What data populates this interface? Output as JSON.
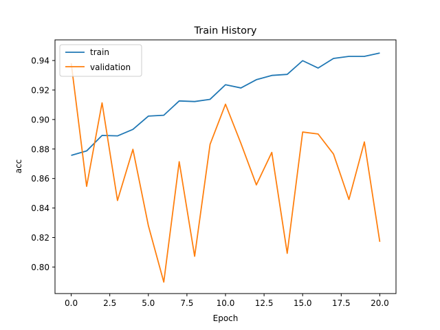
{
  "chart_data": {
    "type": "line",
    "title": "Train History",
    "xlabel": "Epoch",
    "ylabel": "acc",
    "xlim": [
      -1.05,
      21.05
    ],
    "ylim": [
      0.782,
      0.954
    ],
    "x_ticks": [
      0.0,
      2.5,
      5.0,
      7.5,
      10.0,
      12.5,
      15.0,
      17.5,
      20.0
    ],
    "x_tick_labels": [
      "0.0",
      "2.5",
      "5.0",
      "7.5",
      "10.0",
      "12.5",
      "15.0",
      "17.5",
      "20.0"
    ],
    "y_ticks": [
      0.8,
      0.82,
      0.84,
      0.86,
      0.88,
      0.9,
      0.92,
      0.94
    ],
    "y_tick_labels": [
      "0.80",
      "0.82",
      "0.84",
      "0.86",
      "0.88",
      "0.90",
      "0.92",
      "0.94"
    ],
    "grid": false,
    "legend_position": "top-left",
    "x": [
      0,
      1,
      2,
      3,
      4,
      5,
      6,
      7,
      8,
      9,
      10,
      11,
      12,
      13,
      14,
      15,
      16,
      17,
      18,
      19,
      20
    ],
    "series": [
      {
        "name": "train",
        "color": "#1f77b4",
        "values": [
          0.8757,
          0.8787,
          0.8892,
          0.8889,
          0.8933,
          0.9023,
          0.9029,
          0.9126,
          0.9122,
          0.9137,
          0.9236,
          0.9214,
          0.927,
          0.9299,
          0.9306,
          0.9399,
          0.9349,
          0.9414,
          0.9428,
          0.9428,
          0.9451
        ]
      },
      {
        "name": "validation",
        "color": "#ff7f0e",
        "values": [
          0.9382,
          0.8547,
          0.9113,
          0.8451,
          0.8798,
          0.8281,
          0.7898,
          0.8714,
          0.8073,
          0.8832,
          0.9104,
          0.8838,
          0.8557,
          0.8777,
          0.8093,
          0.8915,
          0.8902,
          0.8766,
          0.8458,
          0.8848,
          0.8171
        ]
      }
    ]
  }
}
